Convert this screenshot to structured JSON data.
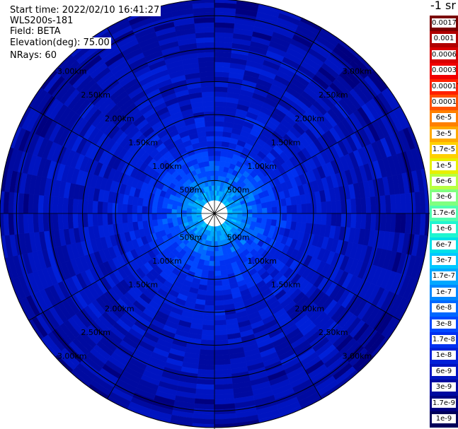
{
  "info": {
    "start_time": "Start time: 2022/02/10 16:41:27",
    "device": "WLS200s-181",
    "field": "Field: BETA",
    "elevation": "Elevation(deg): 75.00",
    "nrays": "NRays: 60"
  },
  "colorbar": {
    "unit": "-1 sr",
    "labels": [
      "0.0017",
      "0.001",
      "0.0006",
      "0.0003",
      "0.00017",
      "0.0001",
      "6e-5",
      "3e-5",
      "1.7e-5",
      "1e-5",
      "6e-6",
      "3e-6",
      "1.7e-6",
      "1e-6",
      "6e-7",
      "3e-7",
      "1.7e-7",
      "1e-7",
      "6e-8",
      "3e-8",
      "1.7e-8",
      "1e-8",
      "6e-9",
      "3e-9",
      "1.7e-9",
      "1e-9"
    ],
    "colors": [
      "#7a0000",
      "#b00000",
      "#d80000",
      "#f00000",
      "#ff2000",
      "#ff5000",
      "#ff8000",
      "#ffaa00",
      "#ffd000",
      "#e8f000",
      "#b8ff40",
      "#80ff80",
      "#50ffb0",
      "#20f5d0",
      "#00e0e8",
      "#00c8ff",
      "#00a8ff",
      "#0088ff",
      "#0068ff",
      "#0048ff",
      "#0030f0",
      "#0020d8",
      "#0014c0",
      "#000aa0",
      "#000080",
      "#00005a"
    ]
  },
  "chart_data": {
    "type": "polar-ppi",
    "field": "BETA",
    "nrays": 60,
    "ring_labels": [
      "500m",
      "1.00km",
      "1.50km",
      "2.00km",
      "2.50km",
      "3.00km"
    ],
    "ring_radii_m": [
      500,
      1000,
      1500,
      2000,
      2500,
      3000
    ],
    "max_range_m": 3250,
    "spoke_angles_deg": [
      0,
      30,
      60,
      90,
      120,
      150,
      180,
      210,
      240,
      270,
      300,
      330
    ],
    "range_gate_m": 75,
    "beta_profile": {
      "range_m": [
        0,
        300,
        500,
        800,
        1200,
        1700,
        2200,
        2800,
        3250
      ],
      "log10_beta": [
        -6.5,
        -6.8,
        -7.2,
        -7.6,
        -8.0,
        -8.2,
        -8.3,
        -8.4,
        -8.5
      ]
    }
  }
}
